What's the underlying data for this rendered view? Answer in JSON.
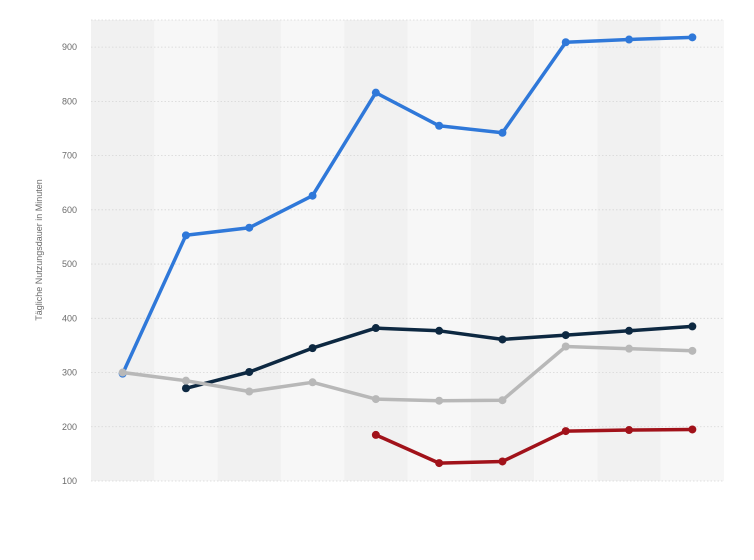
{
  "chart_data": {
    "type": "line",
    "title": "",
    "xlabel": "",
    "ylabel": "Tägliche Nutzungsdauer in Minuten",
    "x_count": 10,
    "ylim": [
      100,
      950
    ],
    "yticks": [
      100,
      200,
      300,
      400,
      500,
      600,
      700,
      800,
      900
    ],
    "grid": true,
    "legend": "none",
    "series": [
      {
        "color": "#2f78d9",
        "values": [
          298,
          553,
          567,
          626,
          816,
          755,
          742,
          909,
          914,
          918
        ]
      },
      {
        "color": "#0d2841",
        "values": [
          null,
          271,
          301,
          345,
          382,
          377,
          361,
          369,
          377,
          385
        ]
      },
      {
        "color": "#b8b8b8",
        "values": [
          300,
          285,
          265,
          282,
          251,
          248,
          249,
          348,
          344,
          340
        ]
      },
      {
        "color": "#a1121a",
        "values": [
          null,
          null,
          null,
          null,
          185,
          133,
          136,
          192,
          194,
          195
        ]
      }
    ]
  }
}
